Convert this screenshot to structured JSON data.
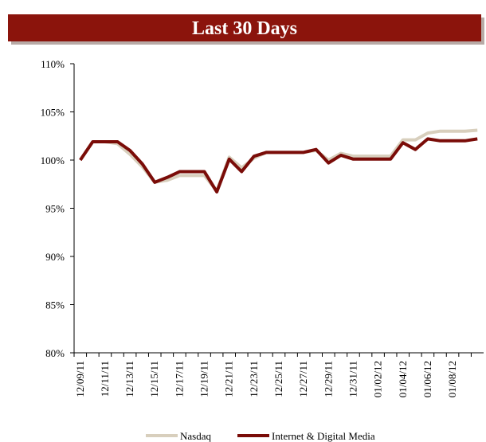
{
  "chart_data": {
    "type": "line",
    "title": "Last 30 Days",
    "categories": [
      "12/09/11",
      null,
      "12/11/11",
      null,
      "12/13/11",
      null,
      "12/15/11",
      null,
      "12/17/11",
      null,
      "12/19/11",
      null,
      "12/21/11",
      null,
      "12/23/11",
      null,
      "12/25/11",
      null,
      "12/27/11",
      null,
      "12/29/11",
      null,
      "12/31/11",
      null,
      "01/02/12",
      null,
      "01/04/12",
      null,
      "01/06/12",
      null,
      "01/08/12",
      null,
      null
    ],
    "series": [
      {
        "name": "Nasdaq",
        "color": "#d8cfbd",
        "values": [
          100,
          101.9,
          101.9,
          101.7,
          100.6,
          99.3,
          97.7,
          97.9,
          98.4,
          98.4,
          98.4,
          96.8,
          100.3,
          99.2,
          100.2,
          100.8,
          100.8,
          100.8,
          100.8,
          101,
          100,
          100.7,
          100.4,
          100.4,
          100.4,
          100.4,
          102.1,
          102.1,
          102.8,
          103,
          103,
          103,
          103.1
        ]
      },
      {
        "name": "Internet & Digital Media",
        "color": "#7a0c08",
        "values": [
          100,
          101.9,
          101.9,
          101.9,
          101,
          99.6,
          97.7,
          98.2,
          98.8,
          98.8,
          98.8,
          96.7,
          100.1,
          98.8,
          100.4,
          100.8,
          100.8,
          100.8,
          100.8,
          101.1,
          99.7,
          100.5,
          100.1,
          100.1,
          100.1,
          100.1,
          101.8,
          101.1,
          102.2,
          102,
          102,
          102,
          102.2
        ]
      }
    ],
    "ylim": [
      80,
      110
    ],
    "yticks": [
      {
        "value": 80,
        "label": "80%"
      },
      {
        "value": 85,
        "label": "85%"
      },
      {
        "value": 90,
        "label": "90%"
      },
      {
        "value": 95,
        "label": "95%"
      },
      {
        "value": 100,
        "label": "100%"
      },
      {
        "value": 105,
        "label": "105%"
      },
      {
        "value": 110,
        "label": "110%"
      }
    ],
    "legend": "bottom"
  }
}
